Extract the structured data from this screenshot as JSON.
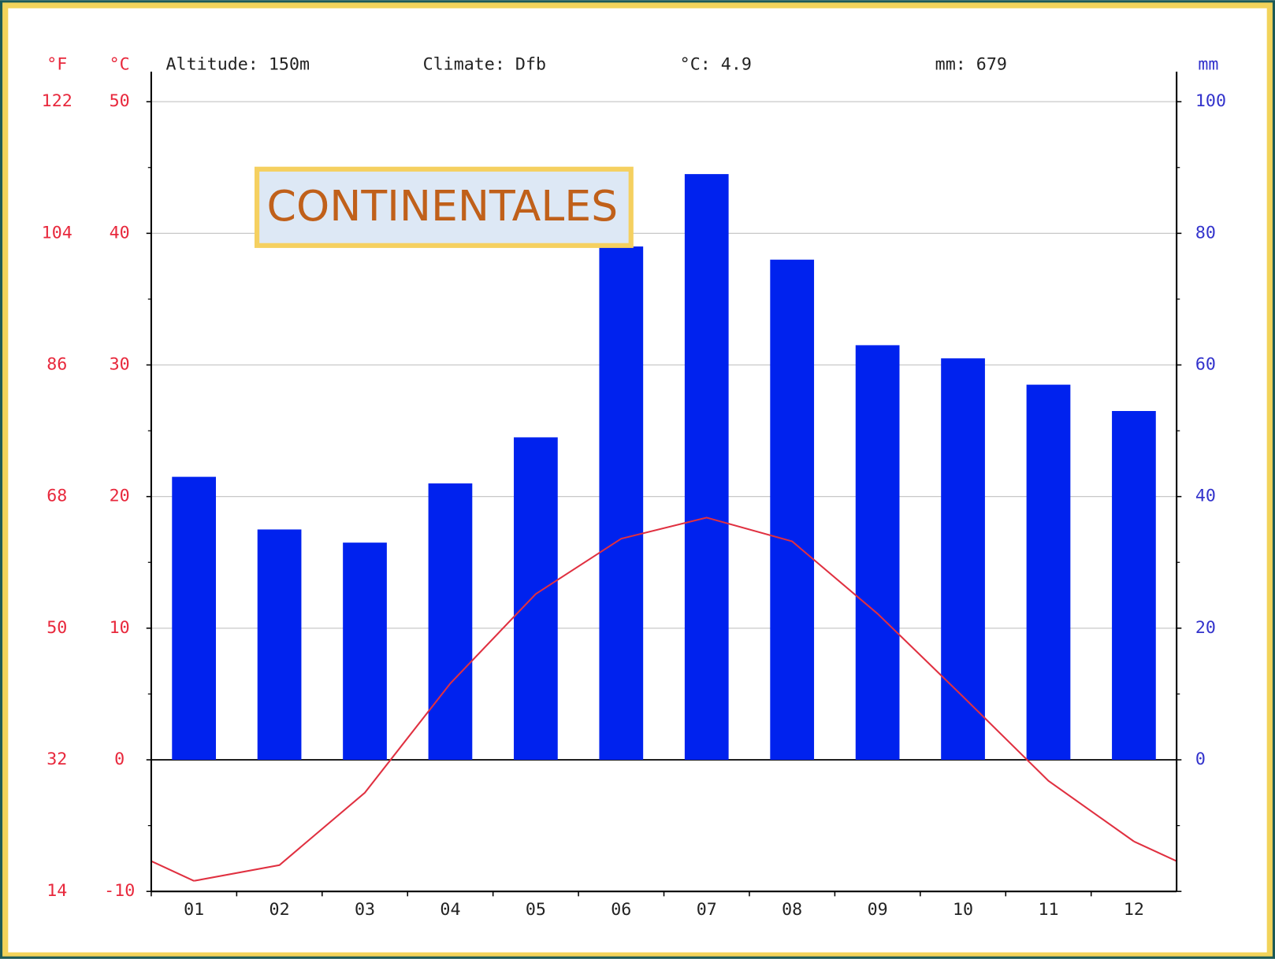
{
  "chart_data": {
    "type": "bar",
    "f_unit": "°F",
    "c_unit": "°C",
    "mm_unit": "mm",
    "altitude": "Altitude: 150m",
    "climate": "Climate: Dfb",
    "mean_temp": "°C: 4.9",
    "total_precip": "mm: 679",
    "annotation": "CONTINENTALES",
    "categories": [
      "01",
      "02",
      "03",
      "04",
      "05",
      "06",
      "07",
      "08",
      "09",
      "10",
      "11",
      "12"
    ],
    "bars": {
      "color": "#0022ee",
      "axis": "y2",
      "values": [
        43,
        35,
        33,
        42,
        49,
        78,
        89,
        76,
        63,
        61,
        57,
        53
      ]
    },
    "line": {
      "color": "#e03040",
      "values": [
        -9.2,
        -8.0,
        -2.5,
        5.8,
        12.6,
        16.8,
        18.4,
        16.6,
        11.1,
        4.8,
        -1.6,
        -6.2
      ]
    },
    "ylim": [
      -10,
      50
    ],
    "yticks": [
      -10,
      0,
      10,
      20,
      30,
      40,
      50
    ],
    "yminor": [
      -5,
      5,
      15,
      25,
      35,
      45
    ],
    "flim": [
      14,
      122
    ],
    "fticks": [
      14,
      32,
      50,
      68,
      86,
      104,
      122
    ],
    "y2lim": [
      -20,
      100
    ],
    "y2ticks": [
      0,
      20,
      40,
      60,
      80,
      100
    ],
    "grid": true
  }
}
